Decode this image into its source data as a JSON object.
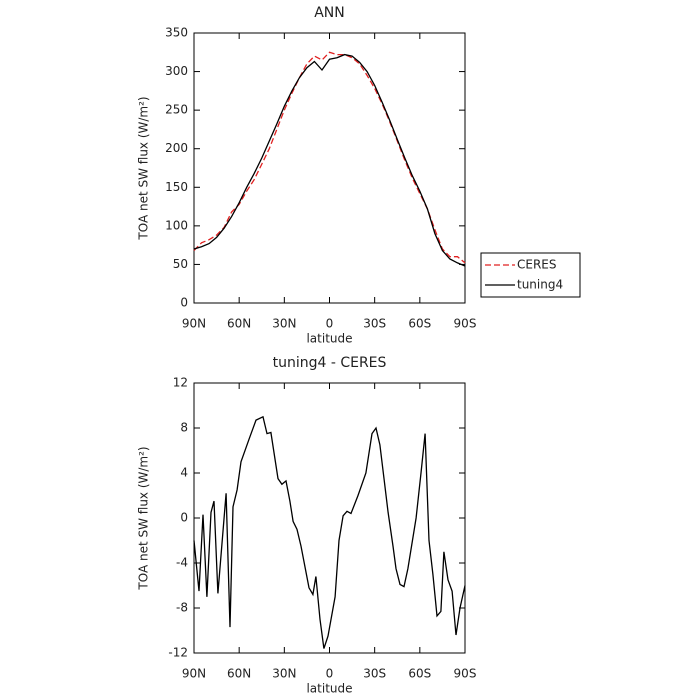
{
  "chart_data": [
    {
      "type": "line",
      "title": "ANN",
      "xlabel": "latitude",
      "ylabel": "TOA net SW flux (W/m²)",
      "x": [
        90,
        85,
        80,
        75,
        70,
        65,
        60,
        55,
        50,
        45,
        40,
        35,
        30,
        25,
        20,
        15,
        10,
        5,
        0,
        -5,
        -10,
        -15,
        -20,
        -25,
        -30,
        -35,
        -40,
        -45,
        -50,
        -55,
        -60,
        -65,
        -70,
        -75,
        -80,
        -85,
        -90
      ],
      "series": [
        {
          "name": "CERES",
          "color": "#e02020",
          "dash": true,
          "values": [
            68,
            78,
            82,
            88,
            98,
            118,
            128,
            145,
            160,
            180,
            200,
            225,
            250,
            272,
            292,
            310,
            320,
            315,
            325,
            322,
            322,
            318,
            310,
            295,
            278,
            258,
            235,
            210,
            185,
            162,
            142,
            122,
            95,
            70,
            60,
            60,
            52
          ]
        },
        {
          "name": "tuning4",
          "color": "#000000",
          "dash": false,
          "values": [
            70,
            73,
            77,
            85,
            97,
            112,
            130,
            150,
            168,
            188,
            210,
            232,
            255,
            275,
            292,
            305,
            313,
            302,
            316,
            318,
            322,
            320,
            312,
            300,
            282,
            260,
            237,
            212,
            188,
            165,
            145,
            122,
            90,
            68,
            57,
            52,
            48
          ]
        }
      ],
      "xlim": [
        90,
        -90
      ],
      "xticks": [
        {
          "value": 90,
          "label": "90N"
        },
        {
          "value": 60,
          "label": "60N"
        },
        {
          "value": 30,
          "label": "30N"
        },
        0,
        {
          "value": -30,
          "label": "30S"
        },
        {
          "value": -60,
          "label": "60S"
        },
        {
          "value": -90,
          "label": "90S"
        }
      ],
      "ylim": [
        0,
        350
      ],
      "yticks": [
        0,
        50,
        100,
        150,
        200,
        250,
        300,
        350
      ],
      "legend": "right"
    },
    {
      "type": "line",
      "title": "tuning4 - CERES",
      "xlabel": "latitude",
      "ylabel": "TOA net SW flux (W/m²)",
      "x": [
        90,
        86.7,
        84,
        81.4,
        78.7,
        76.7,
        74.1,
        68.7,
        66.1,
        64.1,
        61.4,
        58.8,
        53.5,
        48.8,
        44.2,
        41.5,
        38.9,
        34.2,
        31.6,
        28.9,
        26.3,
        24.2,
        21.6,
        18.9,
        13.6,
        11,
        9,
        6.3,
        3.7,
        1,
        -3.7,
        -6.3,
        -9,
        -11.6,
        -14.3,
        -18.9,
        -24.2,
        -28.2,
        -30.9,
        -33.5,
        -36.2,
        -38.9,
        -42.2,
        -44.2,
        -46.8,
        -49.5,
        -52.1,
        -57.5,
        -60.8,
        -63.5,
        -66.1,
        -68.7,
        -71.4,
        -74,
        -76,
        -78.7,
        -81.4,
        -84,
        -86.7,
        -90
      ],
      "values": [
        -2,
        -6.5,
        0.3,
        -7,
        0.5,
        1.5,
        -6.7,
        2.2,
        -9.7,
        1,
        2.5,
        5,
        7,
        8.7,
        9,
        7.5,
        7.6,
        3.5,
        3,
        3.3,
        1.5,
        -0.3,
        -1,
        -2.5,
        -6.2,
        -6.8,
        -5.2,
        -9,
        -11.6,
        -10.5,
        -7,
        -2,
        0.2,
        0.6,
        0.4,
        2,
        4,
        7.5,
        8,
        6.5,
        3.5,
        0.5,
        -2.5,
        -4.5,
        -5.9,
        -6.1,
        -4.5,
        0,
        4,
        7.5,
        -2,
        -5,
        -8.7,
        -8.3,
        -3,
        -5.5,
        -6.5,
        -10.4,
        -8,
        -6
      ],
      "color": "#000000",
      "xlim": [
        90,
        -90
      ],
      "xticks": [
        {
          "value": 90,
          "label": "90N"
        },
        {
          "value": 60,
          "label": "60N"
        },
        {
          "value": 30,
          "label": "30N"
        },
        0,
        {
          "value": -30,
          "label": "30S"
        },
        {
          "value": -60,
          "label": "60S"
        },
        {
          "value": -90,
          "label": "90S"
        }
      ],
      "ylim": [
        -12,
        12
      ],
      "yticks": [
        -12,
        -8,
        -4,
        0,
        4,
        8,
        12
      ]
    }
  ]
}
